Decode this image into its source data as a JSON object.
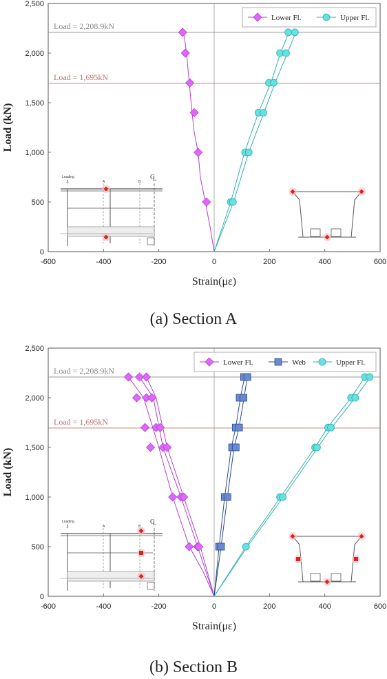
{
  "panels": [
    {
      "caption": "(a) Section A",
      "chart_data": {
        "type": "line",
        "xlabel": "Strain(με)",
        "ylabel": "Load (kN)",
        "xlim": [
          -600,
          600
        ],
        "ylim": [
          0,
          2500
        ],
        "xticks": [
          -600,
          -400,
          -200,
          0,
          200,
          400,
          600
        ],
        "yticks": [
          0,
          500,
          1000,
          1500,
          2000,
          2500
        ],
        "xtick_labels": [
          "-600",
          "-400",
          "-200",
          "0",
          "200",
          "400",
          "600"
        ],
        "ytick_labels": [
          "0",
          "500",
          "1,000",
          "1,500",
          "2,000",
          "2,500"
        ],
        "legend_position": "top-right",
        "reference_lines": [
          {
            "y": 2208.9,
            "label": "Load = 2,208.9kN",
            "color": "#888888"
          },
          {
            "y": 1695,
            "label": "Load = 1,695kN",
            "color": "#c07070"
          }
        ],
        "series": [
          {
            "name": "Lower Fl.",
            "marker": "diamond",
            "color": "#e066ff",
            "edge": "#b040d0",
            "lines": [
              {
                "x": [
                  0,
                  -15,
                  -32,
                  -50,
                  -58,
                  -72,
                  -80,
                  -90,
                  -100,
                  -110
                ],
                "y": [
                  0,
                  250,
                  500,
                  750,
                  1000,
                  1200,
                  1400,
                  1700,
                  2000,
                  2208.9
                ]
              }
            ],
            "markers": [
              {
                "x": -28,
                "y": 500
              },
              {
                "x": -58,
                "y": 1000
              },
              {
                "x": -72,
                "y": 1400
              },
              {
                "x": -88,
                "y": 1700
              },
              {
                "x": -104,
                "y": 2000
              },
              {
                "x": -114,
                "y": 2208.9
              }
            ]
          },
          {
            "name": "Upper Fl.",
            "marker": "circle",
            "color": "#66e0e0",
            "edge": "#30b0b0",
            "lines": [
              {
                "x": [
                  0,
                  60,
                  110,
                  160,
                  205,
                  240,
                  270
                ],
                "y": [
                  0,
                  500,
                  1000,
                  1400,
                  1700,
                  2000,
                  2208.9
                ]
              },
              {
                "x": [
                  0,
                  70,
                  125,
                  180,
                  220,
                  265,
                  295
                ],
                "y": [
                  0,
                  500,
                  1000,
                  1400,
                  1700,
                  2000,
                  2208.9
                ]
              }
            ],
            "markers": [
              {
                "x": 60,
                "y": 500
              },
              {
                "x": 68,
                "y": 500
              },
              {
                "x": 112,
                "y": 1000
              },
              {
                "x": 125,
                "y": 1000
              },
              {
                "x": 160,
                "y": 1400
              },
              {
                "x": 178,
                "y": 1400
              },
              {
                "x": 198,
                "y": 1700
              },
              {
                "x": 215,
                "y": 1700
              },
              {
                "x": 238,
                "y": 2000
              },
              {
                "x": 260,
                "y": 2000
              },
              {
                "x": 268,
                "y": 2208.9
              },
              {
                "x": 292,
                "y": 2208.9
              }
            ]
          }
        ]
      },
      "insets": {
        "beam_labels": [
          "Loading",
          "A",
          "B",
          "C",
          "L"
        ],
        "sensor_color": "#e02020"
      }
    },
    {
      "caption": "(b) Section B",
      "chart_data": {
        "type": "line",
        "xlabel": "Strain(με)",
        "ylabel": "Load (kN)",
        "xlim": [
          -600,
          600
        ],
        "ylim": [
          0,
          2500
        ],
        "xticks": [
          -600,
          -400,
          -200,
          0,
          200,
          400,
          600
        ],
        "yticks": [
          0,
          500,
          1000,
          1500,
          2000,
          2500
        ],
        "xtick_labels": [
          "-600",
          "-400",
          "-200",
          "0",
          "200",
          "400",
          "600"
        ],
        "ytick_labels": [
          "0",
          "500",
          "1,000",
          "1,500",
          "2,000",
          "2,500"
        ],
        "legend_position": "top-right",
        "reference_lines": [
          {
            "y": 2208.9,
            "label": "Load = 2,208.9kN",
            "color": "#888888"
          },
          {
            "y": 1695,
            "label": "Load = 1,695kN",
            "color": "#c07070"
          }
        ],
        "series": [
          {
            "name": "Lower Fl.",
            "marker": "diamond",
            "color": "#e066ff",
            "edge": "#b040d0",
            "lines": [
              {
                "x": [
                  0,
                  -40,
                  -90,
                  -150,
                  -200,
                  -255,
                  -310
                ],
                "y": [
                  0,
                  250,
                  500,
                  1000,
                  1500,
                  2000,
                  2208.9
                ]
              },
              {
                "x": [
                  0,
                  -30,
                  -60,
                  -120,
                  -185,
                  -220,
                  -270
                ],
                "y": [
                  0,
                  250,
                  500,
                  1000,
                  1500,
                  2000,
                  2208.9
                ]
              },
              {
                "x": [
                  0,
                  -25,
                  -50,
                  -110,
                  -170,
                  -210,
                  -245
                ],
                "y": [
                  0,
                  250,
                  500,
                  1000,
                  1500,
                  2000,
                  2208.9
                ]
              }
            ],
            "markers": [
              {
                "x": -90,
                "y": 500
              },
              {
                "x": -60,
                "y": 500
              },
              {
                "x": -55,
                "y": 500
              },
              {
                "x": -150,
                "y": 1000
              },
              {
                "x": -120,
                "y": 1000
              },
              {
                "x": -110,
                "y": 1000
              },
              {
                "x": -185,
                "y": 1500
              },
              {
                "x": -170,
                "y": 1500
              },
              {
                "x": -230,
                "y": 1500
              },
              {
                "x": -250,
                "y": 1700
              },
              {
                "x": -210,
                "y": 1700
              },
              {
                "x": -195,
                "y": 1700
              },
              {
                "x": -280,
                "y": 2000
              },
              {
                "x": -245,
                "y": 2000
              },
              {
                "x": -225,
                "y": 2000
              },
              {
                "x": -310,
                "y": 2208.9
              },
              {
                "x": -270,
                "y": 2208.9
              },
              {
                "x": -245,
                "y": 2208.9
              }
            ]
          },
          {
            "name": "Web",
            "marker": "square",
            "color": "#6a8ad0",
            "edge": "#2a4a90",
            "lines": [
              {
                "x": [
                  0,
                  18,
                  38,
                  62,
                  78,
                  95,
                  110
                ],
                "y": [
                  0,
                  500,
                  1000,
                  1500,
                  1700,
                  2000,
                  2208.9
                ]
              },
              {
                "x": [
                  0,
                  25,
                  48,
                  72,
                  90,
                  108,
                  120
                ],
                "y": [
                  0,
                  500,
                  1000,
                  1500,
                  1700,
                  2000,
                  2208.9
                ]
              }
            ],
            "markers": [
              {
                "x": 18,
                "y": 500
              },
              {
                "x": 25,
                "y": 500
              },
              {
                "x": 38,
                "y": 1000
              },
              {
                "x": 48,
                "y": 1000
              },
              {
                "x": 65,
                "y": 1500
              },
              {
                "x": 78,
                "y": 1500
              },
              {
                "x": 78,
                "y": 1700
              },
              {
                "x": 90,
                "y": 1700
              },
              {
                "x": 92,
                "y": 2000
              },
              {
                "x": 106,
                "y": 2000
              },
              {
                "x": 108,
                "y": 2208.9
              },
              {
                "x": 120,
                "y": 2208.9
              }
            ]
          },
          {
            "name": "Upper Fl.",
            "marker": "circle",
            "color": "#66e0e0",
            "edge": "#30b0b0",
            "lines": [
              {
                "x": [
                  0,
                  115,
                  240,
                  365,
                  410,
                  495,
                  545
                ],
                "y": [
                  0,
                  500,
                  1000,
                  1500,
                  1700,
                  2000,
                  2208.9
                ]
              },
              {
                "x": [
                  0,
                  120,
                  250,
                  375,
                  425,
                  510,
                  565
                ],
                "y": [
                  0,
                  500,
                  1000,
                  1500,
                  1700,
                  2000,
                  2208.9
                ]
              }
            ],
            "markers": [
              {
                "x": 115,
                "y": 500
              },
              {
                "x": 238,
                "y": 1000
              },
              {
                "x": 248,
                "y": 1000
              },
              {
                "x": 365,
                "y": 1500
              },
              {
                "x": 372,
                "y": 1500
              },
              {
                "x": 412,
                "y": 1700
              },
              {
                "x": 422,
                "y": 1700
              },
              {
                "x": 495,
                "y": 2000
              },
              {
                "x": 510,
                "y": 2000
              },
              {
                "x": 545,
                "y": 2208.9
              },
              {
                "x": 562,
                "y": 2208.9
              }
            ]
          }
        ]
      },
      "insets": {
        "beam_labels": [
          "Loading",
          "A",
          "B",
          "C",
          "L"
        ],
        "sensor_color": "#e02020"
      }
    }
  ]
}
